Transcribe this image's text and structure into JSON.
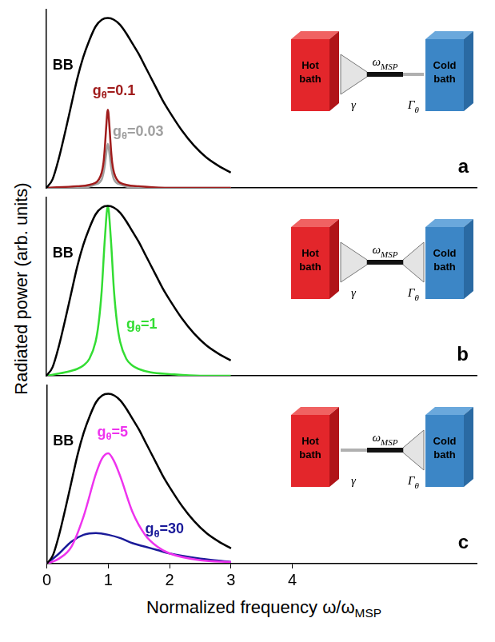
{
  "chart_data": [
    {
      "type": "line",
      "panel_label": "a",
      "xlim": [
        0,
        7
      ],
      "xticks": [
        0,
        1,
        2,
        3,
        4
      ],
      "ylim": [
        0,
        1.05
      ],
      "yticks": [],
      "grid": false,
      "tick_labels": false,
      "series": [
        {
          "color": "#000000",
          "x": [
            0,
            0.1,
            0.2,
            0.3,
            0.4,
            0.5,
            0.6,
            0.7,
            0.8,
            0.9,
            1.0,
            1.1,
            1.2,
            1.3,
            1.4,
            1.5,
            1.6,
            1.7,
            1.8,
            1.9,
            2.0,
            2.2,
            2.4,
            2.6,
            2.8,
            3.0
          ],
          "values": [
            0,
            0.05,
            0.17,
            0.32,
            0.48,
            0.64,
            0.77,
            0.87,
            0.95,
            0.99,
            1.0,
            0.99,
            0.96,
            0.91,
            0.85,
            0.79,
            0.72,
            0.65,
            0.58,
            0.51,
            0.45,
            0.34,
            0.25,
            0.18,
            0.13,
            0.09
          ]
        },
        {
          "color": "#a01c1c",
          "x": [
            0,
            0.5,
            0.8,
            0.9,
            0.93,
            0.95,
            0.97,
            1,
            1.03,
            1.05,
            1.07,
            1.1,
            1.2,
            1.5,
            2,
            3
          ],
          "values": [
            0,
            0.01,
            0.03,
            0.09,
            0.15,
            0.23,
            0.34,
            0.46,
            0.34,
            0.23,
            0.15,
            0.09,
            0.03,
            0.01,
            0,
            0
          ]
        },
        {
          "color": "#a0a0a0",
          "x": [
            0,
            0.5,
            0.8,
            0.9,
            0.93,
            0.95,
            0.97,
            1,
            1.03,
            1.05,
            1.07,
            1.1,
            1.2,
            1.5,
            2,
            3
          ],
          "values": [
            0,
            0,
            0.02,
            0.05,
            0.09,
            0.13,
            0.19,
            0.26,
            0.19,
            0.13,
            0.09,
            0.05,
            0.02,
            0,
            0,
            0
          ]
        }
      ],
      "annotations": [
        {
          "text": [
            "BB"
          ],
          "x": 0.1,
          "y": 0.72,
          "color": "#000000"
        },
        {
          "text": [
            "g",
            {
              "sub": "θ"
            },
            "=0.1"
          ],
          "x": 0.75,
          "y": 0.57,
          "color": "#a01c1c"
        },
        {
          "text": [
            "g",
            {
              "sub": "θ"
            },
            "=0.03"
          ],
          "x": 1.08,
          "y": 0.33,
          "color": "#a0a0a0"
        }
      ],
      "inset": {
        "hot_bath": "Hot bath",
        "cold_bath": "Cold bath",
        "resonator": [
          "ω",
          {
            "sub": "MSP"
          }
        ],
        "hot_coupling": [
          "γ"
        ],
        "cold_coupling": [
          "Γ",
          {
            "sub": "θ"
          }
        ],
        "hot_coupling_shape": "funnel",
        "cold_coupling_shape": "wire"
      }
    },
    {
      "type": "line",
      "panel_label": "b",
      "xlim": [
        0,
        7
      ],
      "xticks": [
        0,
        1,
        2,
        3,
        4
      ],
      "ylim": [
        0,
        1.05
      ],
      "yticks": [],
      "grid": false,
      "tick_labels": false,
      "y_label": "Radiated power (arb. units)",
      "series": [
        {
          "color": "#000000",
          "x": [
            0,
            0.1,
            0.2,
            0.3,
            0.4,
            0.5,
            0.6,
            0.7,
            0.8,
            0.9,
            1.0,
            1.1,
            1.2,
            1.3,
            1.4,
            1.5,
            1.6,
            1.7,
            1.8,
            1.9,
            2.0,
            2.2,
            2.4,
            2.6,
            2.8,
            3.0
          ],
          "values": [
            0,
            0.05,
            0.17,
            0.32,
            0.48,
            0.64,
            0.77,
            0.87,
            0.95,
            0.99,
            1.0,
            0.99,
            0.96,
            0.91,
            0.85,
            0.79,
            0.72,
            0.65,
            0.58,
            0.51,
            0.45,
            0.34,
            0.25,
            0.18,
            0.13,
            0.09
          ]
        },
        {
          "color": "#33dd33",
          "x": [
            0,
            0.3,
            0.5,
            0.6,
            0.7,
            0.8,
            0.85,
            0.9,
            0.95,
            1,
            1.05,
            1.1,
            1.15,
            1.2,
            1.3,
            1.4,
            1.5,
            1.7,
            2,
            2.5,
            3
          ],
          "values": [
            0,
            0.02,
            0.04,
            0.06,
            0.1,
            0.2,
            0.31,
            0.5,
            0.8,
            1.0,
            0.8,
            0.5,
            0.31,
            0.2,
            0.1,
            0.06,
            0.04,
            0.02,
            0.01,
            0,
            0
          ]
        }
      ],
      "annotations": [
        {
          "text": [
            "BB"
          ],
          "x": 0.1,
          "y": 0.72,
          "color": "#000000"
        },
        {
          "text": [
            "g",
            {
              "sub": "θ"
            },
            "=1"
          ],
          "x": 1.3,
          "y": 0.3,
          "color": "#33dd33"
        }
      ],
      "inset": {
        "hot_bath": "Hot bath",
        "cold_bath": "Cold bath",
        "resonator": [
          "ω",
          {
            "sub": "MSP"
          }
        ],
        "hot_coupling": [
          "γ"
        ],
        "cold_coupling": [
          "Γ",
          {
            "sub": "θ"
          }
        ],
        "hot_coupling_shape": "funnel",
        "cold_coupling_shape": "funnel"
      }
    },
    {
      "type": "line",
      "panel_label": "c",
      "xlim": [
        0,
        7
      ],
      "xticks": [
        0,
        1,
        2,
        3,
        4
      ],
      "ylim": [
        0,
        1.05
      ],
      "yticks": [],
      "grid": false,
      "tick_labels": "x",
      "x_label": [
        "Normalized frequency ω/ω",
        {
          "sub": "MSP"
        }
      ],
      "series": [
        {
          "color": "#000000",
          "x": [
            0,
            0.1,
            0.2,
            0.3,
            0.4,
            0.5,
            0.6,
            0.7,
            0.8,
            0.9,
            1.0,
            1.1,
            1.2,
            1.3,
            1.4,
            1.5,
            1.6,
            1.7,
            1.8,
            1.9,
            2.0,
            2.2,
            2.4,
            2.6,
            2.8,
            3.0
          ],
          "values": [
            0,
            0.05,
            0.17,
            0.32,
            0.48,
            0.64,
            0.77,
            0.87,
            0.95,
            0.99,
            1.0,
            0.99,
            0.96,
            0.91,
            0.85,
            0.79,
            0.72,
            0.65,
            0.58,
            0.51,
            0.45,
            0.34,
            0.25,
            0.18,
            0.13,
            0.09
          ]
        },
        {
          "color": "#ee33ee",
          "x": [
            0,
            0.2,
            0.4,
            0.6,
            0.8,
            0.9,
            1,
            1.1,
            1.2,
            1.4,
            1.6,
            1.8,
            2,
            2.5,
            3
          ],
          "values": [
            0,
            0.03,
            0.1,
            0.28,
            0.53,
            0.62,
            0.65,
            0.6,
            0.51,
            0.3,
            0.17,
            0.1,
            0.06,
            0.02,
            0.01
          ]
        },
        {
          "color": "#1a1a99",
          "x": [
            0,
            0.2,
            0.4,
            0.6,
            0.8,
            1,
            1.2,
            1.4,
            1.6,
            1.8,
            2,
            2.5,
            3
          ],
          "values": [
            0,
            0.06,
            0.13,
            0.17,
            0.18,
            0.17,
            0.15,
            0.12,
            0.1,
            0.08,
            0.06,
            0.03,
            0.01
          ]
        }
      ],
      "annotations": [
        {
          "text": [
            "BB"
          ],
          "x": 0.1,
          "y": 0.72,
          "color": "#000000"
        },
        {
          "text": [
            "g",
            {
              "sub": "θ"
            },
            "=5"
          ],
          "x": 0.82,
          "y": 0.77,
          "color": "#ee33ee"
        },
        {
          "text": [
            "g",
            {
              "sub": "θ"
            },
            "=30"
          ],
          "x": 1.6,
          "y": 0.2,
          "color": "#1a1a99"
        }
      ],
      "inset": {
        "hot_bath": "Hot bath",
        "cold_bath": "Cold bath",
        "resonator": [
          "ω",
          {
            "sub": "MSP"
          }
        ],
        "hot_coupling": [
          "γ"
        ],
        "cold_coupling": [
          "Γ",
          {
            "sub": "θ"
          }
        ],
        "hot_coupling_shape": "wire",
        "cold_coupling_shape": "funnel"
      }
    }
  ]
}
